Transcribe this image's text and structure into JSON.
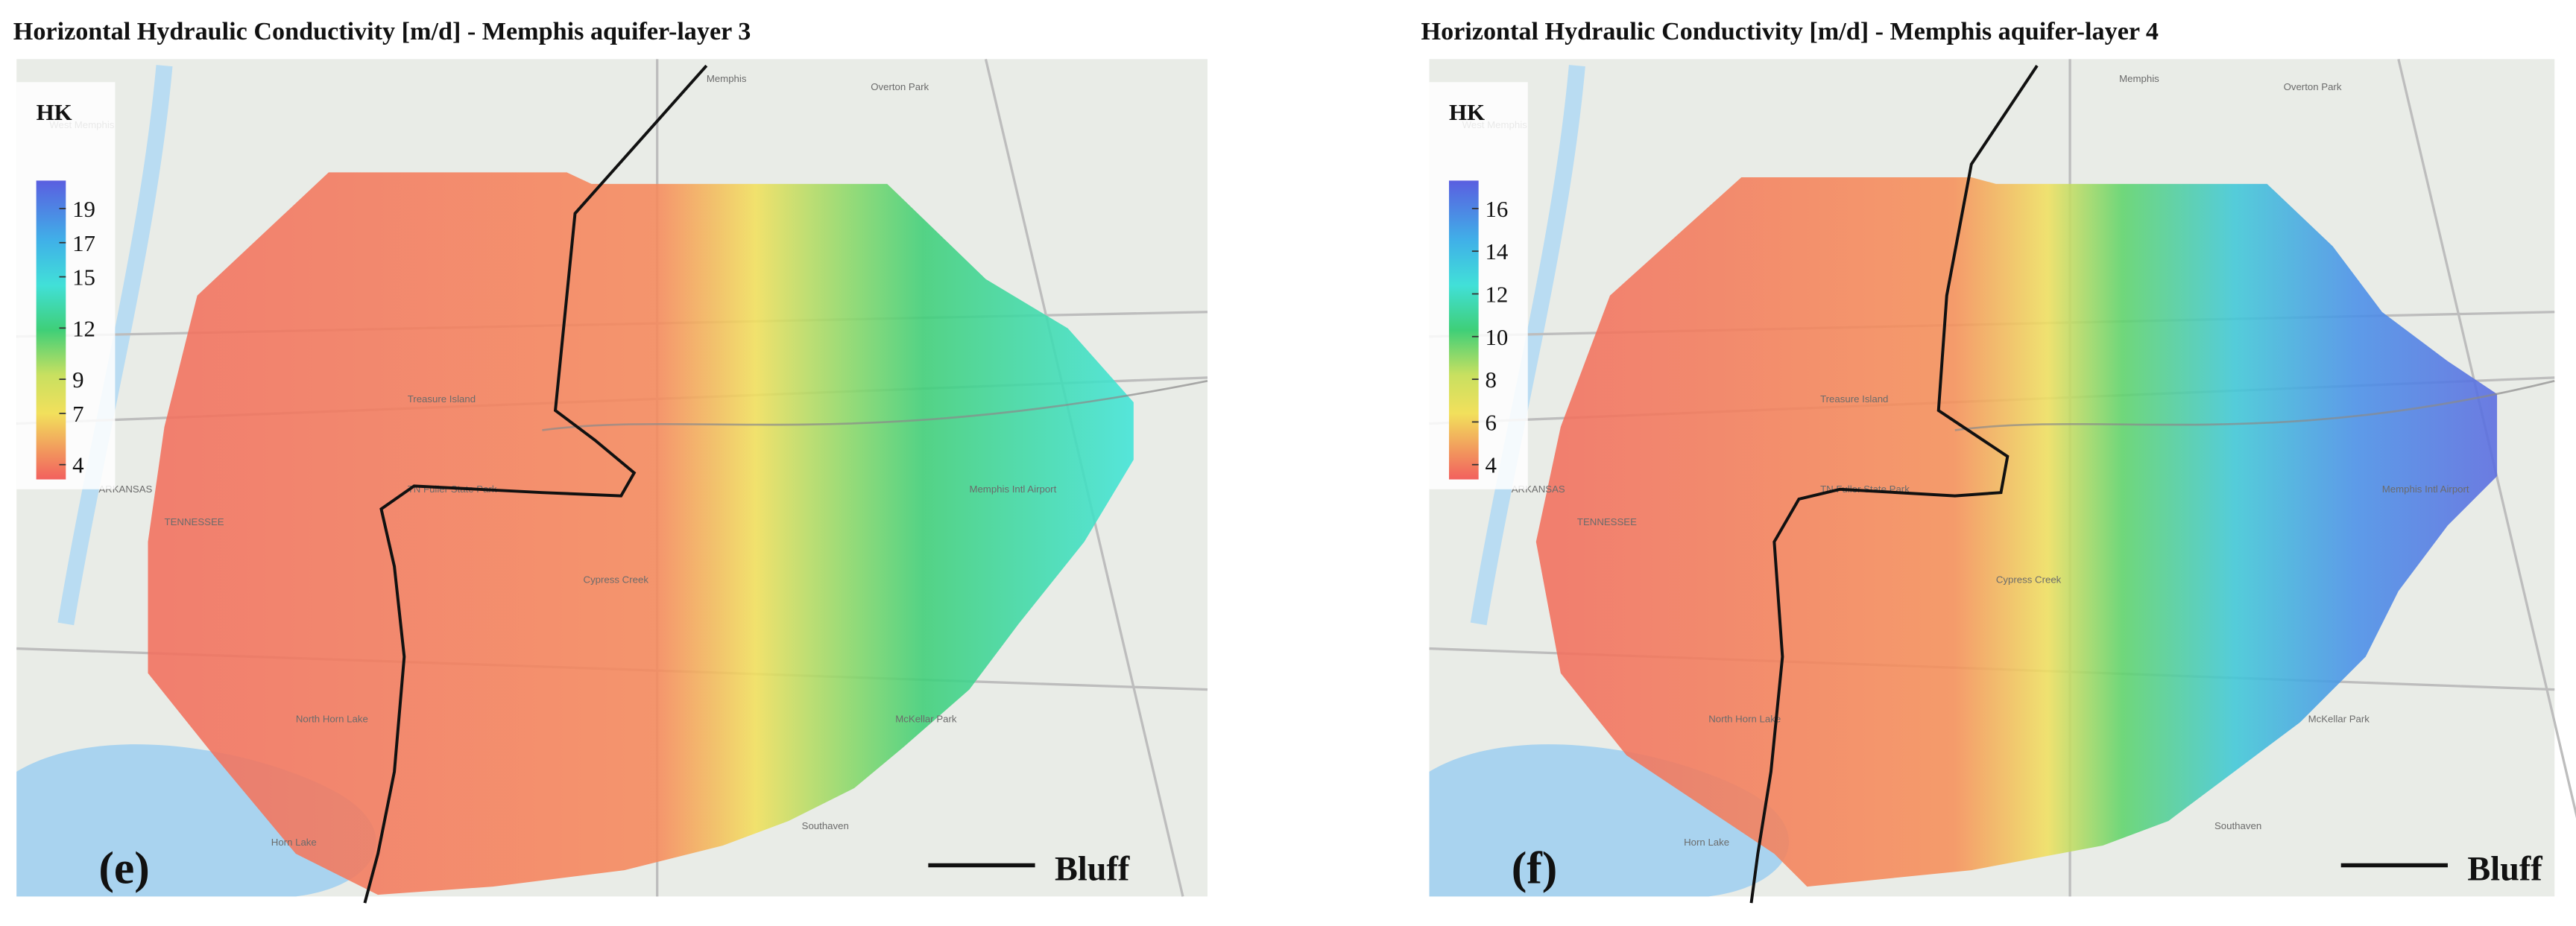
{
  "panels": [
    {
      "title": "Horizontal Hydraulic Conductivity [m/d] - Memphis aquifer-layer 3",
      "legend": {
        "title": "HK",
        "ticks": [
          19,
          17,
          15,
          12,
          9,
          7,
          4
        ]
      },
      "label": "(e)",
      "line_legend": "Bluff",
      "places": [
        "Memphis",
        "West Memphis",
        "Overton Park",
        "Treasure Island",
        "TN Fuller State Park",
        "Cypress Creek",
        "Memphis Intl Airport",
        "McKellar Park",
        "Southaven",
        "North Horn Lake",
        "Horn Lake",
        "ARKANSAS",
        "TENNESSEE"
      ]
    },
    {
      "title": "Horizontal Hydraulic Conductivity [m/d] - Memphis aquifer-layer 4",
      "legend": {
        "title": "HK",
        "ticks": [
          16,
          14,
          12,
          10,
          8,
          6,
          4
        ]
      },
      "label": "(f)",
      "line_legend": "Bluff",
      "places": [
        "Memphis",
        "West Memphis",
        "Overton Park",
        "Treasure Island",
        "TN Fuller State Park",
        "Cypress Creek",
        "Memphis Intl Airport",
        "McKellar Park",
        "Southaven",
        "North Horn Lake",
        "Horn Lake",
        "ARKANSAS",
        "TENNESSEE"
      ]
    }
  ]
}
